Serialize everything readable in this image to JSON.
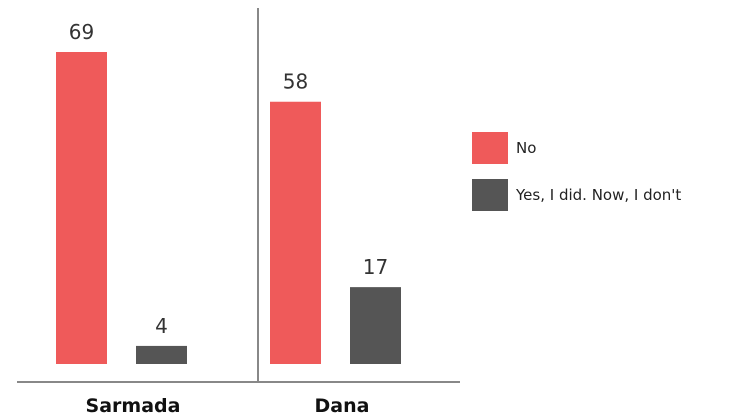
{
  "chart_data": {
    "type": "bar",
    "categories": [
      "Sarmada",
      "Dana"
    ],
    "series": [
      {
        "name": "No",
        "values": [
          69,
          58
        ],
        "color": "#ef5a5a"
      },
      {
        "name": "Yes, I did. Now, I don't",
        "values": [
          4,
          17
        ],
        "color": "#555555"
      }
    ],
    "ylim": [
      0,
      69
    ],
    "grid": false,
    "legend_position": "right"
  }
}
